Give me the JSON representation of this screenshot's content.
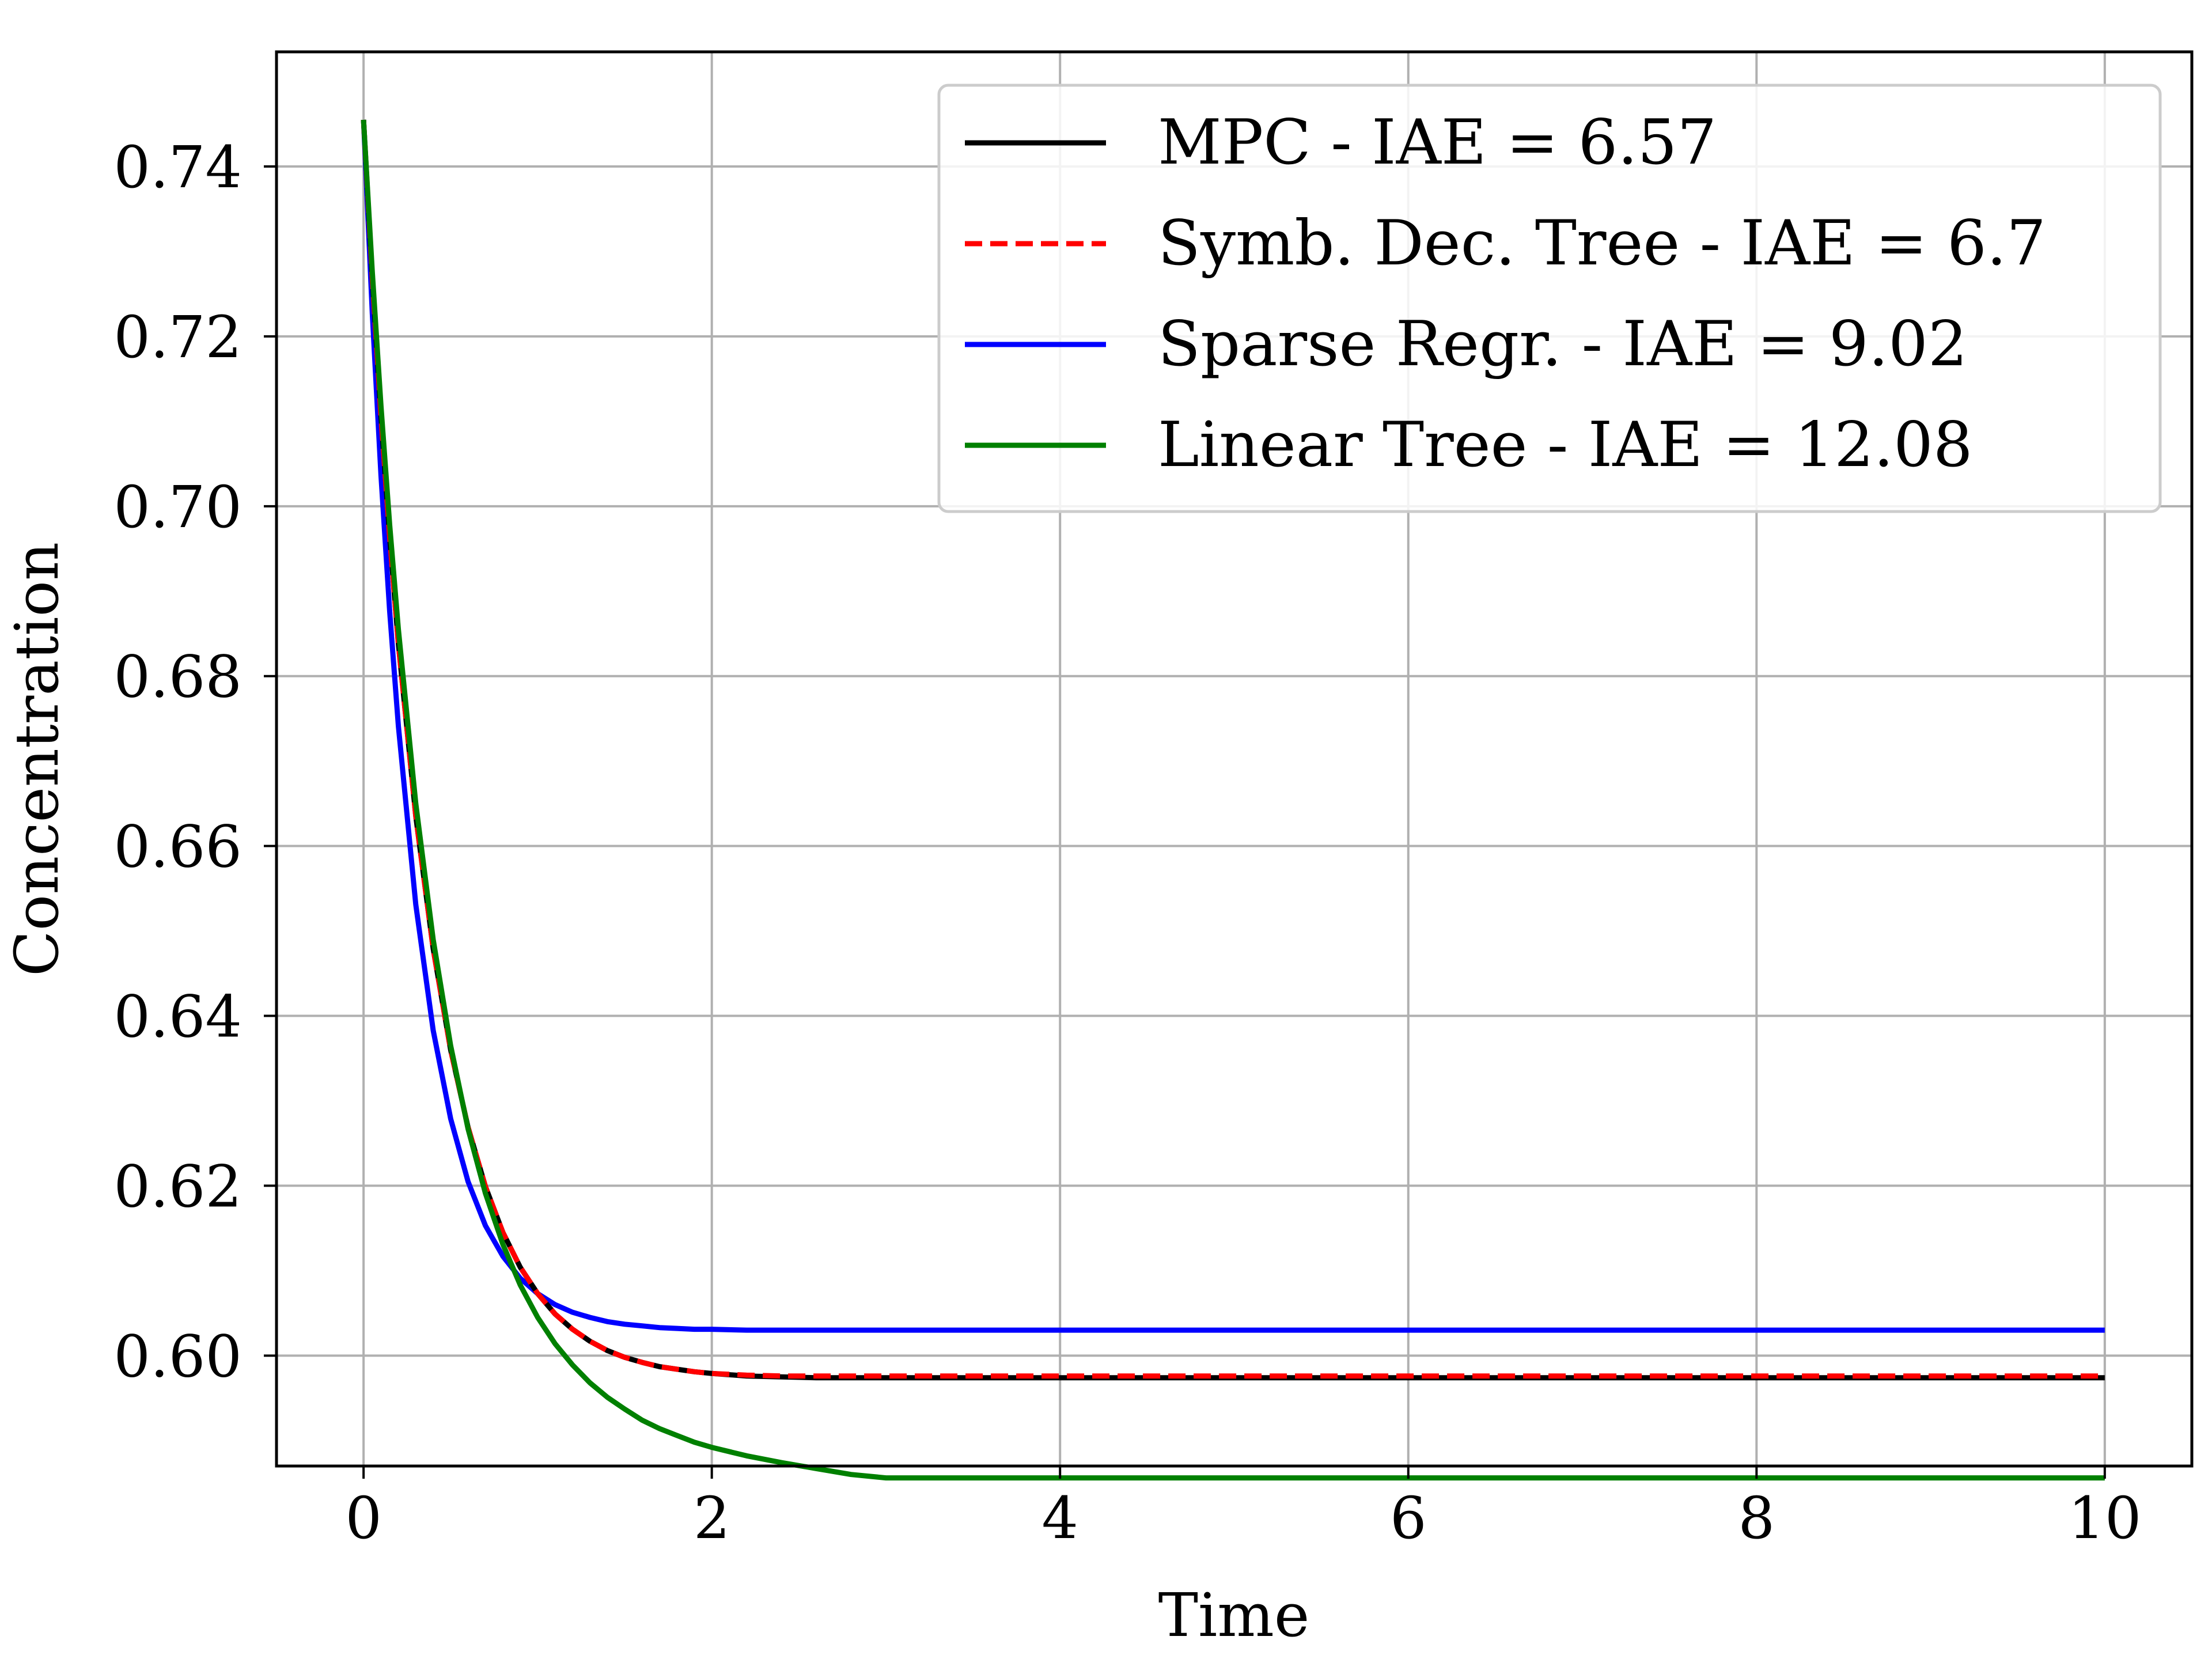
{
  "chart_data": {
    "type": "line",
    "title": "",
    "xlabel": "Time",
    "ylabel": "Concentration",
    "xlim": [
      -0.5,
      10.5
    ],
    "ylim": [
      0.587,
      0.7535
    ],
    "xticks": [
      0,
      2,
      4,
      6,
      8,
      10
    ],
    "xtick_labels": [
      "0",
      "2",
      "4",
      "6",
      "8",
      "10"
    ],
    "yticks": [
      0.6,
      0.62,
      0.64,
      0.66,
      0.68,
      0.7,
      0.72,
      0.74
    ],
    "ytick_labels": [
      "0.60",
      "0.62",
      "0.64",
      "0.66",
      "0.68",
      "0.70",
      "0.72",
      "0.74"
    ],
    "grid": true,
    "legend_position": "top-right",
    "x": [
      0,
      0.05,
      0.1,
      0.15,
      0.2,
      0.3,
      0.4,
      0.5,
      0.6,
      0.7,
      0.8,
      0.9,
      1.0,
      1.1,
      1.2,
      1.3,
      1.4,
      1.5,
      1.6,
      1.7,
      1.8,
      1.9,
      2.0,
      2.2,
      2.4,
      2.6,
      2.8,
      3.0,
      3.5,
      4.0,
      5.0,
      6.0,
      7.0,
      8.0,
      9.0,
      10.0
    ],
    "series": [
      {
        "name": "MPC - IAE = 6.57",
        "color": "#000000",
        "style": "solid",
        "values": [
          0.7455,
          0.7268,
          0.7105,
          0.6963,
          0.6838,
          0.6635,
          0.6479,
          0.636,
          0.6269,
          0.6199,
          0.6145,
          0.6104,
          0.6073,
          0.6049,
          0.6031,
          0.6017,
          0.6006,
          0.5998,
          0.5992,
          0.5987,
          0.5984,
          0.5981,
          0.5979,
          0.5976,
          0.5975,
          0.5974,
          0.5974,
          0.5974,
          0.5974,
          0.5974,
          0.5974,
          0.5974,
          0.5974,
          0.5974,
          0.5974,
          0.5974
        ]
      },
      {
        "name": "Symb. Dec. Tree - IAE = 6.7",
        "color": "#ff0000",
        "style": "dashed",
        "values": [
          0.7455,
          0.7268,
          0.7105,
          0.6963,
          0.6838,
          0.6635,
          0.6479,
          0.636,
          0.6269,
          0.6199,
          0.6145,
          0.6104,
          0.6073,
          0.6049,
          0.6031,
          0.6017,
          0.6006,
          0.5998,
          0.5992,
          0.5987,
          0.5984,
          0.5981,
          0.5979,
          0.5977,
          0.5976,
          0.5976,
          0.5976,
          0.5976,
          0.5976,
          0.5976,
          0.5976,
          0.5976,
          0.5976,
          0.5976,
          0.5976,
          0.5976
        ]
      },
      {
        "name": "Sparse Regr. - IAE = 9.02",
        "color": "#0000ff",
        "style": "solid",
        "values": [
          0.7455,
          0.7227,
          0.7036,
          0.6876,
          0.6741,
          0.6531,
          0.6383,
          0.6279,
          0.6205,
          0.6153,
          0.6117,
          0.6091,
          0.6073,
          0.606,
          0.6051,
          0.6045,
          0.604,
          0.6037,
          0.6035,
          0.6033,
          0.6032,
          0.6031,
          0.6031,
          0.603,
          0.603,
          0.603,
          0.603,
          0.603,
          0.603,
          0.603,
          0.603,
          0.603,
          0.603,
          0.603,
          0.603,
          0.603
        ]
      },
      {
        "name": "Linear Tree - IAE = 12.08",
        "color": "#008000",
        "style": "solid",
        "values": [
          0.7455,
          0.7276,
          0.7118,
          0.6978,
          0.6855,
          0.665,
          0.649,
          0.6365,
          0.6267,
          0.6191,
          0.6131,
          0.6083,
          0.6045,
          0.6014,
          0.5989,
          0.5968,
          0.5951,
          0.5937,
          0.5924,
          0.5914,
          0.5906,
          0.5898,
          0.5892,
          0.5882,
          0.5874,
          0.5867,
          0.586,
          0.5856,
          0.5856,
          0.5856,
          0.5856,
          0.5856,
          0.5856,
          0.5856,
          0.5856,
          0.5856
        ]
      }
    ]
  }
}
